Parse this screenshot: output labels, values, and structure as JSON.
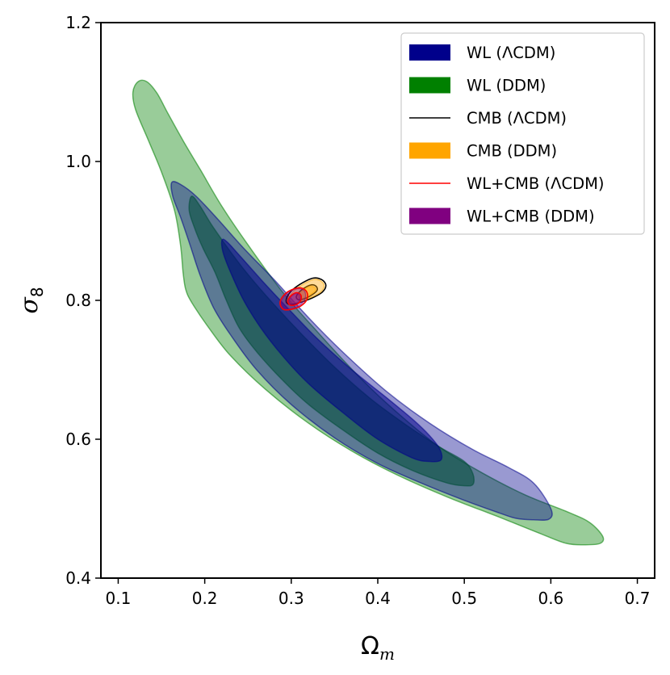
{
  "chart_data": {
    "type": "contour",
    "xlabel": "Ω",
    "xlabel_sub": "m",
    "ylabel": "σ",
    "ylabel_sub": "8",
    "xlim": [
      0.08,
      0.72
    ],
    "ylim": [
      0.4,
      1.2
    ],
    "xticks": [
      "0.1",
      "0.2",
      "0.3",
      "0.4",
      "0.5",
      "0.6",
      "0.7"
    ],
    "yticks": [
      "0.4",
      "0.6",
      "0.8",
      "1.0",
      "1.2"
    ],
    "xtick_values": [
      0.1,
      0.2,
      0.3,
      0.4,
      0.5,
      0.6,
      0.7
    ],
    "ytick_values": [
      0.4,
      0.6,
      0.8,
      1.0,
      1.2
    ],
    "legend_position": "top-right",
    "series": [
      {
        "name": "WL (DDM)",
        "style": "filled",
        "color": "#008000",
        "outer": [
          [
            0.123,
            1.115
          ],
          [
            0.133,
            1.115
          ],
          [
            0.145,
            1.098
          ],
          [
            0.158,
            1.068
          ],
          [
            0.175,
            1.03
          ],
          [
            0.195,
            0.988
          ],
          [
            0.22,
            0.935
          ],
          [
            0.25,
            0.88
          ],
          [
            0.29,
            0.812
          ],
          [
            0.33,
            0.755
          ],
          [
            0.38,
            0.688
          ],
          [
            0.42,
            0.641
          ],
          [
            0.47,
            0.59
          ],
          [
            0.52,
            0.552
          ],
          [
            0.57,
            0.52
          ],
          [
            0.62,
            0.495
          ],
          [
            0.645,
            0.48
          ],
          [
            0.66,
            0.46
          ],
          [
            0.657,
            0.45
          ],
          [
            0.64,
            0.448
          ],
          [
            0.618,
            0.45
          ],
          [
            0.59,
            0.463
          ],
          [
            0.54,
            0.488
          ],
          [
            0.48,
            0.517
          ],
          [
            0.42,
            0.55
          ],
          [
            0.37,
            0.583
          ],
          [
            0.32,
            0.623
          ],
          [
            0.27,
            0.672
          ],
          [
            0.23,
            0.72
          ],
          [
            0.205,
            0.76
          ],
          [
            0.185,
            0.797
          ],
          [
            0.178,
            0.816
          ],
          [
            0.175,
            0.84
          ],
          [
            0.172,
            0.88
          ],
          [
            0.165,
            0.93
          ],
          [
            0.15,
            0.985
          ],
          [
            0.135,
            1.03
          ],
          [
            0.12,
            1.075
          ],
          [
            0.117,
            1.1
          ]
        ],
        "inner": [
          [
            0.185,
            0.95
          ],
          [
            0.195,
            0.935
          ],
          [
            0.21,
            0.905
          ],
          [
            0.24,
            0.853
          ],
          [
            0.27,
            0.808
          ],
          [
            0.31,
            0.754
          ],
          [
            0.35,
            0.704
          ],
          [
            0.39,
            0.66
          ],
          [
            0.43,
            0.623
          ],
          [
            0.47,
            0.59
          ],
          [
            0.5,
            0.568
          ],
          [
            0.51,
            0.55
          ],
          [
            0.51,
            0.535
          ],
          [
            0.5,
            0.533
          ],
          [
            0.48,
            0.537
          ],
          [
            0.44,
            0.555
          ],
          [
            0.4,
            0.58
          ],
          [
            0.36,
            0.613
          ],
          [
            0.32,
            0.65
          ],
          [
            0.29,
            0.685
          ],
          [
            0.26,
            0.726
          ],
          [
            0.24,
            0.76
          ],
          [
            0.225,
            0.8
          ],
          [
            0.212,
            0.84
          ],
          [
            0.198,
            0.875
          ],
          [
            0.188,
            0.905
          ],
          [
            0.182,
            0.93
          ]
        ]
      },
      {
        "name": "WL (ΛCDM)",
        "style": "filled",
        "color": "#00008b",
        "outer": [
          [
            0.162,
            0.97
          ],
          [
            0.172,
            0.967
          ],
          [
            0.19,
            0.95
          ],
          [
            0.215,
            0.917
          ],
          [
            0.245,
            0.875
          ],
          [
            0.28,
            0.83
          ],
          [
            0.32,
            0.775
          ],
          [
            0.36,
            0.725
          ],
          [
            0.41,
            0.669
          ],
          [
            0.46,
            0.623
          ],
          [
            0.51,
            0.585
          ],
          [
            0.55,
            0.56
          ],
          [
            0.58,
            0.537
          ],
          [
            0.6,
            0.5
          ],
          [
            0.598,
            0.485
          ],
          [
            0.58,
            0.484
          ],
          [
            0.56,
            0.486
          ],
          [
            0.54,
            0.494
          ],
          [
            0.5,
            0.512
          ],
          [
            0.45,
            0.537
          ],
          [
            0.4,
            0.565
          ],
          [
            0.35,
            0.602
          ],
          [
            0.3,
            0.65
          ],
          [
            0.26,
            0.7
          ],
          [
            0.23,
            0.75
          ],
          [
            0.21,
            0.79
          ],
          [
            0.195,
            0.835
          ],
          [
            0.183,
            0.88
          ],
          [
            0.172,
            0.92
          ],
          [
            0.163,
            0.95
          ]
        ],
        "inner": [
          [
            0.22,
            0.887
          ],
          [
            0.226,
            0.884
          ],
          [
            0.24,
            0.865
          ],
          [
            0.265,
            0.83
          ],
          [
            0.295,
            0.79
          ],
          [
            0.33,
            0.745
          ],
          [
            0.37,
            0.7
          ],
          [
            0.41,
            0.66
          ],
          [
            0.44,
            0.629
          ],
          [
            0.46,
            0.605
          ],
          [
            0.472,
            0.585
          ],
          [
            0.473,
            0.57
          ],
          [
            0.46,
            0.568
          ],
          [
            0.44,
            0.573
          ],
          [
            0.4,
            0.6
          ],
          [
            0.36,
            0.638
          ],
          [
            0.32,
            0.68
          ],
          [
            0.29,
            0.72
          ],
          [
            0.265,
            0.76
          ],
          [
            0.245,
            0.8
          ],
          [
            0.23,
            0.84
          ],
          [
            0.221,
            0.87
          ]
        ]
      },
      {
        "name": "CMB (ΛCDM)",
        "style": "line",
        "color": "#000000",
        "outer": [
          [
            0.294,
            0.8
          ],
          [
            0.299,
            0.812
          ],
          [
            0.31,
            0.823
          ],
          [
            0.325,
            0.832
          ],
          [
            0.335,
            0.83
          ],
          [
            0.34,
            0.822
          ],
          [
            0.336,
            0.812
          ],
          [
            0.325,
            0.804
          ],
          [
            0.31,
            0.797
          ],
          [
            0.298,
            0.794
          ]
        ],
        "inner": [
          [
            0.306,
            0.806
          ],
          [
            0.312,
            0.815
          ],
          [
            0.322,
            0.822
          ],
          [
            0.328,
            0.821
          ],
          [
            0.33,
            0.815
          ],
          [
            0.324,
            0.808
          ],
          [
            0.314,
            0.802
          ],
          [
            0.308,
            0.801
          ]
        ]
      },
      {
        "name": "CMB (DDM)",
        "style": "filled",
        "color": "#ffa500",
        "outer": [
          [
            0.296,
            0.8
          ],
          [
            0.301,
            0.811
          ],
          [
            0.312,
            0.822
          ],
          [
            0.326,
            0.83
          ],
          [
            0.334,
            0.828
          ],
          [
            0.338,
            0.821
          ],
          [
            0.334,
            0.812
          ],
          [
            0.324,
            0.805
          ],
          [
            0.31,
            0.798
          ],
          [
            0.299,
            0.796
          ]
        ],
        "inner": [
          [
            0.308,
            0.807
          ],
          [
            0.313,
            0.814
          ],
          [
            0.321,
            0.82
          ],
          [
            0.327,
            0.819
          ],
          [
            0.328,
            0.814
          ],
          [
            0.322,
            0.808
          ],
          [
            0.314,
            0.803
          ],
          [
            0.309,
            0.803
          ]
        ]
      },
      {
        "name": "WL+CMB (DDM)",
        "style": "filled",
        "color": "#800080",
        "outer": [
          [
            0.288,
            0.796
          ],
          [
            0.292,
            0.806
          ],
          [
            0.3,
            0.814
          ],
          [
            0.31,
            0.817
          ],
          [
            0.316,
            0.812
          ],
          [
            0.316,
            0.802
          ],
          [
            0.31,
            0.793
          ],
          [
            0.3,
            0.788
          ],
          [
            0.292,
            0.788
          ]
        ],
        "inner": [
          [
            0.297,
            0.799
          ],
          [
            0.3,
            0.806
          ],
          [
            0.306,
            0.81
          ],
          [
            0.31,
            0.807
          ],
          [
            0.31,
            0.8
          ],
          [
            0.306,
            0.795
          ],
          [
            0.3,
            0.794
          ]
        ]
      },
      {
        "name": "WL+CMB (ΛCDM)",
        "style": "line",
        "color": "#ff0000",
        "outer": [
          [
            0.287,
            0.796
          ],
          [
            0.291,
            0.807
          ],
          [
            0.3,
            0.815
          ],
          [
            0.311,
            0.818
          ],
          [
            0.318,
            0.812
          ],
          [
            0.318,
            0.801
          ],
          [
            0.311,
            0.792
          ],
          [
            0.3,
            0.787
          ],
          [
            0.291,
            0.787
          ]
        ],
        "inner": [
          [
            0.296,
            0.799
          ],
          [
            0.3,
            0.807
          ],
          [
            0.306,
            0.811
          ],
          [
            0.311,
            0.808
          ],
          [
            0.311,
            0.8
          ],
          [
            0.306,
            0.794
          ],
          [
            0.299,
            0.793
          ]
        ]
      }
    ]
  },
  "legend": [
    {
      "label": "WL (ΛCDM)",
      "kind": "patch",
      "color": "#00008b"
    },
    {
      "label": "WL (DDM)",
      "kind": "patch",
      "color": "#008000"
    },
    {
      "label": "CMB (ΛCDM)",
      "kind": "line",
      "color": "#000000"
    },
    {
      "label": "CMB (DDM)",
      "kind": "patch",
      "color": "#ffa500"
    },
    {
      "label": "WL+CMB (ΛCDM)",
      "kind": "line",
      "color": "#ff0000"
    },
    {
      "label": "WL+CMB (DDM)",
      "kind": "patch",
      "color": "#800080"
    }
  ]
}
